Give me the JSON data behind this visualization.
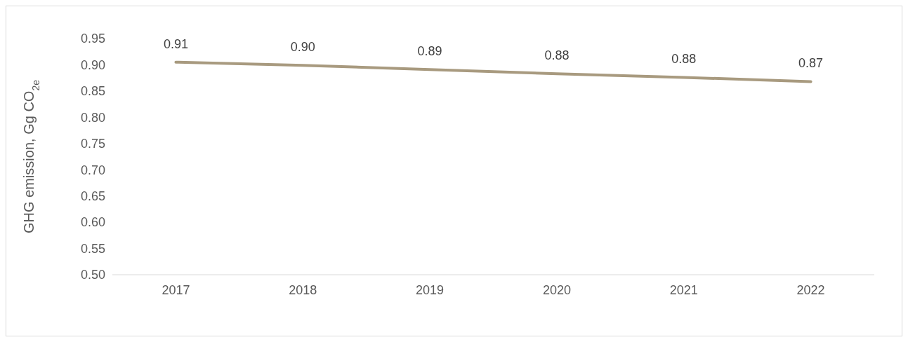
{
  "chart_data": {
    "type": "line",
    "ylabel": "GHG emission, Gg CO$_{2e}$",
    "categories": [
      "2017",
      "2018",
      "2019",
      "2020",
      "2021",
      "2022"
    ],
    "series": [
      {
        "color": "#a89a7f",
        "values": [
          0.905,
          0.899,
          0.891,
          0.883,
          0.876,
          0.868
        ],
        "value_labels": [
          "0.91",
          "0.90",
          "0.89",
          "0.88",
          "0.88",
          "0.87"
        ]
      }
    ],
    "ylim": [
      0.5,
      0.95
    ],
    "yticks": [
      {
        "value": 0.5,
        "label": "0.50"
      },
      {
        "value": 0.55,
        "label": "0.55"
      },
      {
        "value": 0.6,
        "label": "0.60"
      },
      {
        "value": 0.65,
        "label": "0.65"
      },
      {
        "value": 0.7,
        "label": "0.70"
      },
      {
        "value": 0.75,
        "label": "0.75"
      },
      {
        "value": 0.8,
        "label": "0.80"
      },
      {
        "value": 0.85,
        "label": "0.85"
      },
      {
        "value": 0.9,
        "label": "0.90"
      },
      {
        "value": 0.95,
        "label": "0.95"
      }
    ],
    "grid": false,
    "marker": "none",
    "line_style": "solid"
  }
}
